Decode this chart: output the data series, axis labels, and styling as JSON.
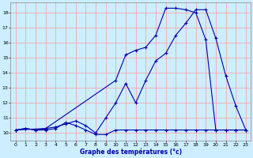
{
  "title": "Graphe des températures (°c)",
  "bg_color": "#cceeff",
  "grid_color": "#ff9999",
  "line_color": "#0000aa",
  "xlim": [
    -0.5,
    23.5
  ],
  "ylim": [
    9.5,
    18.7
  ],
  "xticks": [
    0,
    1,
    2,
    3,
    4,
    5,
    6,
    7,
    8,
    9,
    10,
    11,
    12,
    13,
    14,
    15,
    16,
    17,
    18,
    19,
    20,
    21,
    22,
    23
  ],
  "yticks": [
    10,
    11,
    12,
    13,
    14,
    15,
    16,
    17,
    18
  ],
  "line1_x": [
    0,
    1,
    2,
    3,
    4,
    5,
    6,
    7,
    8,
    9,
    10,
    11,
    12,
    13,
    14,
    15,
    16,
    17,
    18,
    19,
    20,
    21,
    22,
    23
  ],
  "line1_y": [
    10.2,
    10.3,
    10.2,
    10.2,
    10.3,
    10.7,
    10.5,
    10.2,
    9.9,
    9.9,
    10.2,
    10.2,
    10.2,
    10.2,
    10.2,
    10.2,
    10.2,
    10.2,
    10.2,
    10.2,
    10.2,
    10.2,
    10.2,
    10.2
  ],
  "line2_x": [
    0,
    1,
    2,
    3,
    4,
    5,
    6,
    7,
    8,
    9,
    10,
    11,
    12,
    13,
    14,
    15,
    16,
    17,
    18,
    19,
    20,
    21,
    22,
    23
  ],
  "line2_y": [
    10.2,
    10.3,
    10.2,
    10.3,
    10.4,
    10.6,
    10.8,
    10.5,
    10.0,
    11.0,
    12.0,
    13.3,
    12.0,
    13.5,
    14.8,
    15.3,
    16.5,
    17.3,
    18.2,
    18.2,
    16.3,
    13.8,
    11.8,
    10.2
  ],
  "line3_x": [
    0,
    3,
    10,
    11,
    12,
    13,
    14,
    15,
    16,
    17,
    18,
    19,
    20,
    21,
    22,
    23
  ],
  "line3_y": [
    10.2,
    10.3,
    13.5,
    15.2,
    15.5,
    15.7,
    16.5,
    18.3,
    18.3,
    18.2,
    18.0,
    16.2,
    10.2,
    10.2,
    10.2,
    10.2
  ]
}
